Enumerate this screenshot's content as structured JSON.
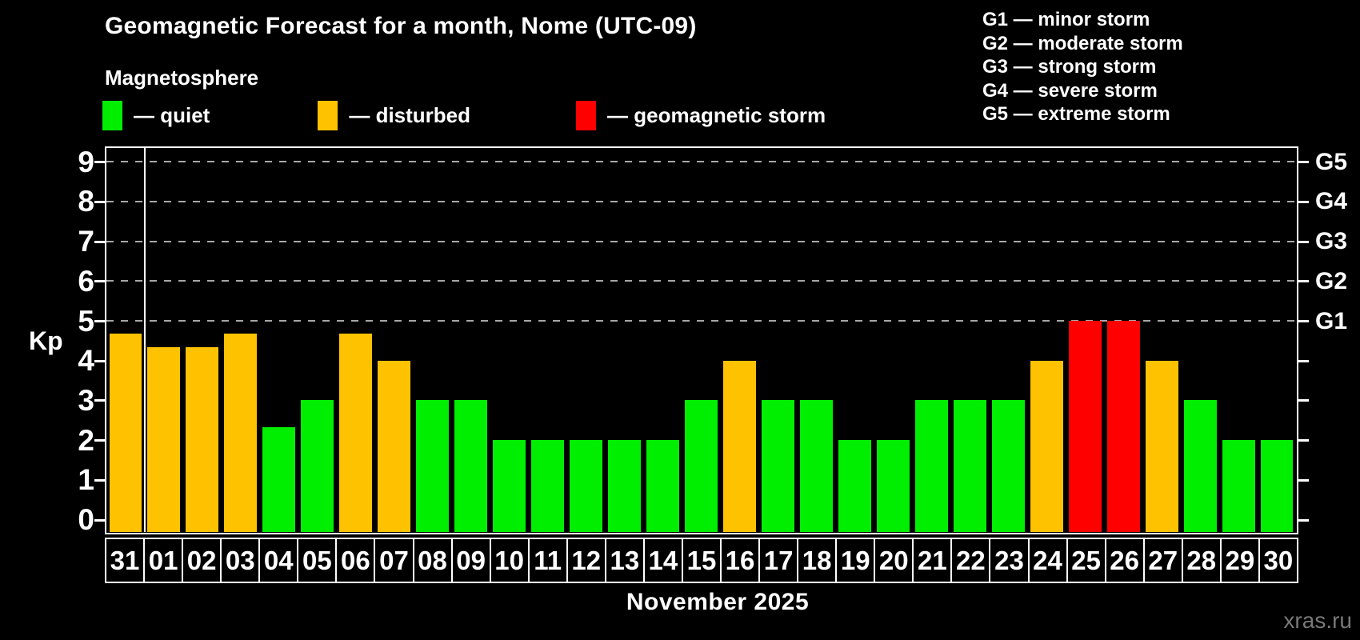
{
  "title": "Geomagnetic Forecast for a month, Nome (UTC-09)",
  "subtitle": "Magnetosphere",
  "legend": {
    "items": [
      {
        "name": "quiet",
        "label": "— quiet",
        "color": "#00ee00"
      },
      {
        "name": "disturbed",
        "label": "— disturbed",
        "color": "#ffc200"
      },
      {
        "name": "storm",
        "label": "— geomagnetic storm",
        "color": "#ff0000"
      }
    ]
  },
  "storm_scale": {
    "lines": [
      "G1 — minor storm",
      "G2 — moderate storm",
      "G3 — strong storm",
      "G4 — severe storm",
      "G5 — extreme storm"
    ]
  },
  "axis": {
    "y_label": "Kp",
    "y_ticks": [
      0,
      1,
      2,
      3,
      4,
      5,
      6,
      7,
      8,
      9
    ],
    "gridline_kps": [
      5,
      6,
      7,
      8,
      9
    ],
    "right_labels": [
      {
        "kp": 5,
        "text": "G1"
      },
      {
        "kp": 6,
        "text": "G2"
      },
      {
        "kp": 7,
        "text": "G3"
      },
      {
        "kp": 8,
        "text": "G4"
      },
      {
        "kp": 9,
        "text": "G5"
      }
    ],
    "x_month_label": "November 2025"
  },
  "watermark": "xras.ru",
  "colors": {
    "quiet": "#00ee00",
    "disturbed": "#ffc200",
    "storm": "#ff0000",
    "grid": "#a8a8a8",
    "frame": "#ffffff",
    "background": "#000000"
  },
  "chart_data": {
    "type": "bar",
    "title": "Geomagnetic Forecast for a month, Nome (UTC-09)",
    "xlabel": "November 2025",
    "ylabel": "Kp",
    "ylim": [
      -0.35,
      9.4
    ],
    "grid": "dashed horizontal at Kp 5-9 (G1-G5)",
    "legend_position": "top-left",
    "month_separator_after_index": 0,
    "categories": [
      "31",
      "01",
      "02",
      "03",
      "04",
      "05",
      "06",
      "07",
      "08",
      "09",
      "10",
      "11",
      "12",
      "13",
      "14",
      "15",
      "16",
      "17",
      "18",
      "19",
      "20",
      "21",
      "22",
      "23",
      "24",
      "25",
      "26",
      "27",
      "28",
      "29",
      "30"
    ],
    "values": [
      4.67,
      4.33,
      4.33,
      4.67,
      2.33,
      3,
      4.67,
      4,
      3,
      3,
      2,
      2,
      2,
      2,
      2,
      3,
      4,
      3,
      3,
      2,
      2,
      3,
      3,
      3,
      4,
      5,
      5,
      4,
      3,
      2,
      2
    ],
    "levels": [
      "disturbed",
      "disturbed",
      "disturbed",
      "disturbed",
      "quiet",
      "quiet",
      "disturbed",
      "disturbed",
      "quiet",
      "quiet",
      "quiet",
      "quiet",
      "quiet",
      "quiet",
      "quiet",
      "quiet",
      "disturbed",
      "quiet",
      "quiet",
      "quiet",
      "quiet",
      "quiet",
      "quiet",
      "quiet",
      "disturbed",
      "storm",
      "storm",
      "disturbed",
      "quiet",
      "quiet",
      "quiet"
    ]
  }
}
